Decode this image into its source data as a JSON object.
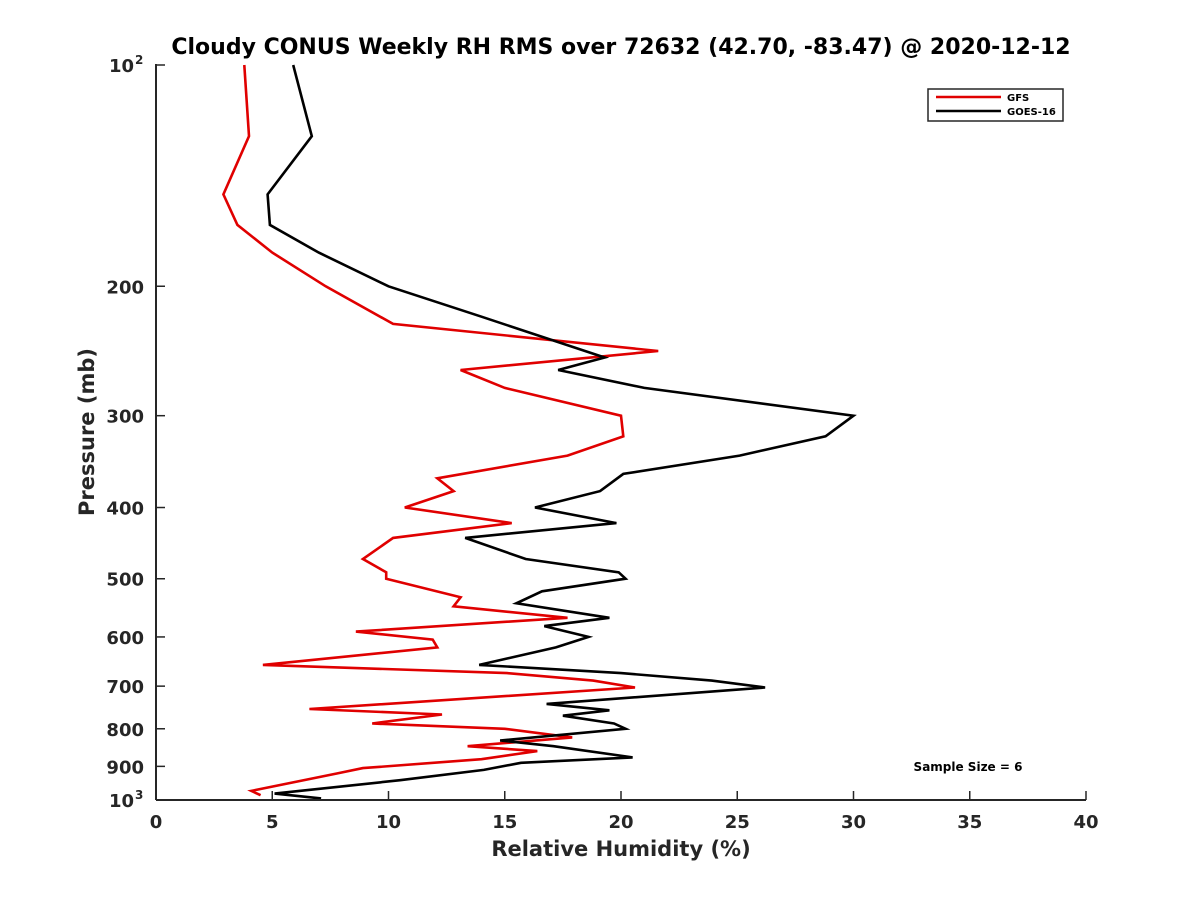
{
  "chart_data": {
    "type": "line",
    "title": "Cloudy CONUS Weekly RH RMS over 72632 (42.70, -83.47) @ 2020-12-12",
    "xlabel": "Relative Humidity (%)",
    "ylabel": "Pressure (mb)",
    "xlim": [
      0,
      40
    ],
    "ylim": [
      100,
      1000
    ],
    "y_scale": "log",
    "y_reversed": true,
    "grid": false,
    "legend_position": "top-right",
    "x_ticks": [
      "0",
      "5",
      "10",
      "15",
      "20",
      "25",
      "30",
      "35",
      "40"
    ],
    "y_ticks": [
      {
        "value": 100,
        "base": "10",
        "exp": "2"
      },
      {
        "value": 200,
        "label": "200"
      },
      {
        "value": 300,
        "label": "300"
      },
      {
        "value": 400,
        "label": "400"
      },
      {
        "value": 500,
        "label": "500"
      },
      {
        "value": 600,
        "label": "600"
      },
      {
        "value": 700,
        "label": "700"
      },
      {
        "value": 800,
        "label": "800"
      },
      {
        "value": 900,
        "label": "900"
      },
      {
        "value": 1000,
        "base": "10",
        "exp": "3"
      }
    ],
    "annotation": "Sample Size = 6",
    "series": [
      {
        "name": "GFS",
        "color": "#e00000",
        "points": [
          [
            3.8,
            100
          ],
          [
            4.0,
            125
          ],
          [
            2.9,
            150
          ],
          [
            3.5,
            165
          ],
          [
            5.0,
            180
          ],
          [
            7.3,
            200
          ],
          [
            10.2,
            225
          ],
          [
            21.6,
            245
          ],
          [
            13.1,
            260
          ],
          [
            15.0,
            275
          ],
          [
            20.0,
            300
          ],
          [
            20.1,
            320
          ],
          [
            17.7,
            340
          ],
          [
            12.1,
            365
          ],
          [
            12.8,
            380
          ],
          [
            10.7,
            400
          ],
          [
            15.3,
            420
          ],
          [
            10.2,
            440
          ],
          [
            8.9,
            470
          ],
          [
            9.9,
            490
          ],
          [
            9.9,
            500
          ],
          [
            13.1,
            530
          ],
          [
            12.8,
            545
          ],
          [
            17.7,
            565
          ],
          [
            8.6,
            590
          ],
          [
            11.9,
            605
          ],
          [
            12.1,
            620
          ],
          [
            4.6,
            655
          ],
          [
            15.1,
            672
          ],
          [
            18.8,
            688
          ],
          [
            20.6,
            703
          ],
          [
            6.6,
            752
          ],
          [
            12.3,
            765
          ],
          [
            9.3,
            787
          ],
          [
            15.0,
            800
          ],
          [
            17.9,
            822
          ],
          [
            13.4,
            845
          ],
          [
            16.4,
            858
          ],
          [
            14.0,
            880
          ],
          [
            8.9,
            905
          ],
          [
            7.8,
            920
          ],
          [
            4.1,
            972
          ],
          [
            4.5,
            985
          ]
        ]
      },
      {
        "name": "GOES-16",
        "color": "#000000",
        "points": [
          [
            5.9,
            100
          ],
          [
            6.7,
            125
          ],
          [
            4.8,
            150
          ],
          [
            4.9,
            165
          ],
          [
            7.0,
            180
          ],
          [
            10.0,
            200
          ],
          [
            14.0,
            220
          ],
          [
            19.3,
            250
          ],
          [
            17.3,
            260
          ],
          [
            21.0,
            275
          ],
          [
            30.0,
            300
          ],
          [
            28.8,
            320
          ],
          [
            25.1,
            340
          ],
          [
            20.1,
            360
          ],
          [
            19.1,
            380
          ],
          [
            16.3,
            400
          ],
          [
            19.8,
            420
          ],
          [
            13.3,
            440
          ],
          [
            15.9,
            470
          ],
          [
            19.9,
            490
          ],
          [
            20.2,
            500
          ],
          [
            16.6,
            520
          ],
          [
            15.5,
            540
          ],
          [
            19.5,
            565
          ],
          [
            16.7,
            580
          ],
          [
            18.6,
            600
          ],
          [
            17.2,
            620
          ],
          [
            13.9,
            655
          ],
          [
            20.0,
            672
          ],
          [
            23.9,
            688
          ],
          [
            26.2,
            703
          ],
          [
            16.8,
            740
          ],
          [
            19.5,
            755
          ],
          [
            17.5,
            768
          ],
          [
            19.7,
            787
          ],
          [
            20.2,
            800
          ],
          [
            14.8,
            830
          ],
          [
            17.1,
            845
          ],
          [
            20.5,
            875
          ],
          [
            15.7,
            890
          ],
          [
            14.1,
            910
          ],
          [
            10.5,
            940
          ],
          [
            5.1,
            980
          ],
          [
            7.1,
            995
          ]
        ]
      }
    ]
  }
}
